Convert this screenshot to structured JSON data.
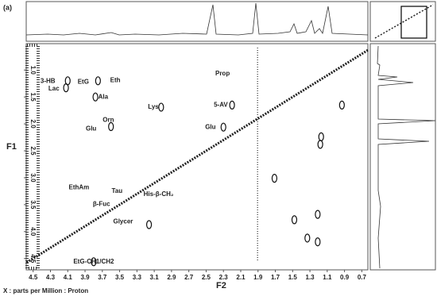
{
  "chart_data": {
    "type": "scatter",
    "label": "(a)",
    "xlabel": "F2",
    "ylabel": "F1",
    "footnote": "X : parts per Million : Proton",
    "x": [
      4.1,
      3.75,
      3.78,
      4.12,
      3.02,
      2.2,
      3.6,
      2.3,
      1.17,
      1.18,
      1.48,
      1.21,
      1.33,
      1.21,
      0.93,
      1.71,
      3.16,
      3.8
    ],
    "values": [
      1.2,
      1.2,
      1.5,
      1.33,
      1.69,
      1.65,
      2.05,
      2.06,
      2.24,
      2.38,
      3.78,
      3.68,
      4.12,
      4.19,
      1.65,
      3.01,
      3.87,
      4.56
    ],
    "color": "#111111",
    "xlim": [
      4.58,
      0.63
    ],
    "ylim": [
      0.51,
      4.71
    ],
    "xticks": [
      4.5,
      4.3,
      4.1,
      3.9,
      3.7,
      3.5,
      3.3,
      3.1,
      2.9,
      2.7,
      2.5,
      2.3,
      2.1,
      1.9,
      1.7,
      1.5,
      1.3,
      1.1,
      0.9,
      0.7
    ],
    "yticks": [
      {
        "value": 1,
        "label": "1.0"
      },
      1.5,
      {
        "value": 2,
        "label": "2.0"
      },
      2.5,
      {
        "value": 3,
        "label": "3.0"
      },
      3.5,
      {
        "value": 4,
        "label": "4.0"
      },
      4.5
    ],
    "annotations": [
      {
        "text": "3-HB",
        "x": 4.33,
        "y": 1.21
      },
      {
        "text": "Lac",
        "x": 4.26,
        "y": 1.35
      },
      {
        "text": "EtG",
        "x": 3.92,
        "y": 1.22
      },
      {
        "text": "Eth",
        "x": 3.55,
        "y": 1.19
      },
      {
        "text": "Ala",
        "x": 3.69,
        "y": 1.5
      },
      {
        "text": "Prop",
        "x": 2.31,
        "y": 1.07
      },
      {
        "text": "Lys",
        "x": 3.11,
        "y": 1.69
      },
      {
        "text": "5-AV",
        "x": 2.33,
        "y": 1.65
      },
      {
        "text": "Orn",
        "x": 3.63,
        "y": 1.93
      },
      {
        "text": "Glu",
        "x": 3.83,
        "y": 2.09
      },
      {
        "text": "Glu",
        "x": 2.45,
        "y": 2.06
      },
      {
        "text": "EthAm",
        "x": 3.97,
        "y": 3.18
      },
      {
        "text": "Tau",
        "x": 3.53,
        "y": 3.25
      },
      {
        "text": "His-β-CH₂",
        "x": 3.05,
        "y": 3.31
      },
      {
        "text": "β-Fuc",
        "x": 3.71,
        "y": 3.49
      },
      {
        "text": "Glycer",
        "x": 3.46,
        "y": 3.82
      },
      {
        "text": "EtG-CH1/CH2",
        "x": 3.8,
        "y": 4.56
      }
    ]
  }
}
